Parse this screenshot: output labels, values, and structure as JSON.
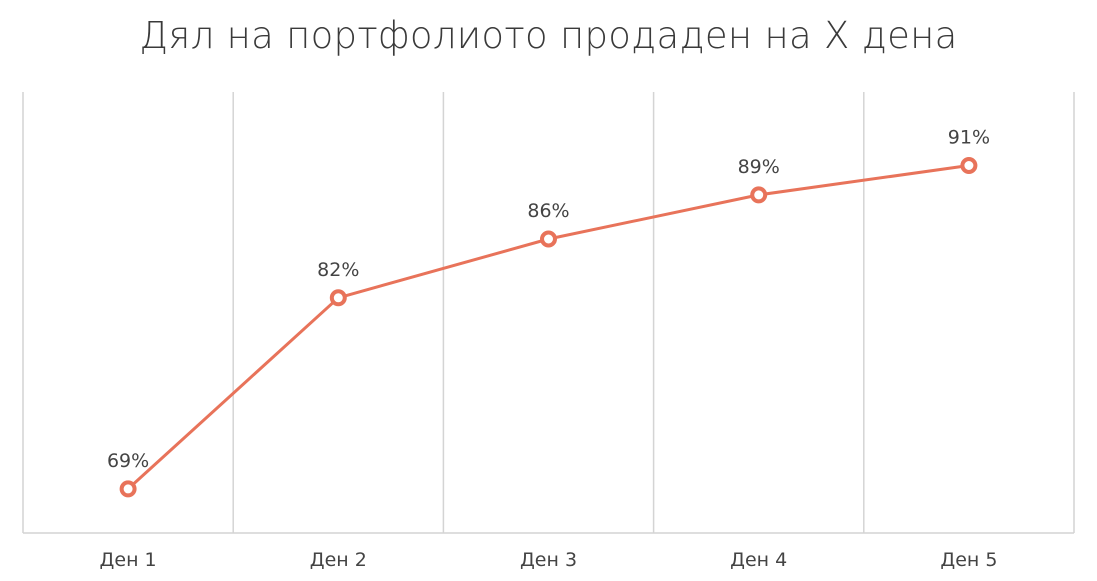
{
  "chart_data": {
    "type": "line",
    "title": "Дял на портфолиото продаден на X дена",
    "categories": [
      "Ден 1",
      "Ден 2",
      "Ден 3",
      "Ден 4",
      "Ден 5"
    ],
    "series": [
      {
        "values": [
          0.69,
          0.82,
          0.86,
          0.89,
          0.91
        ],
        "labels": [
          "69%",
          "82%",
          "86%",
          "89%",
          "91%"
        ],
        "color": "#E8735A"
      }
    ],
    "ylim": [
      0.66,
      0.96
    ],
    "grid": "vertical",
    "legend": "none"
  }
}
